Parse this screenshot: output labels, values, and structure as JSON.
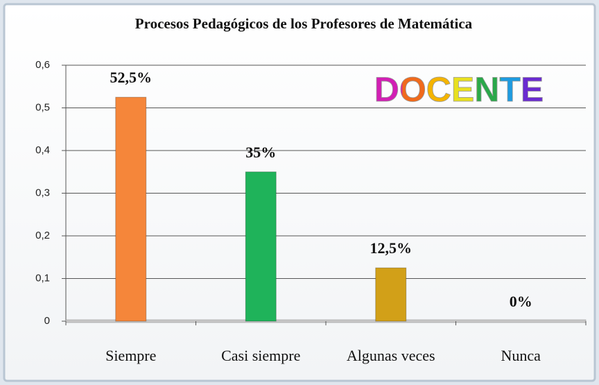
{
  "chart_data": {
    "type": "bar",
    "title": "Procesos Pedagógicos de los Profesores de Matemática",
    "annotation": "DOCENTE",
    "categories": [
      "Siempre",
      "Casi siempre",
      "Algunas veces",
      "Nunca"
    ],
    "values": [
      0.525,
      0.35,
      0.125,
      0
    ],
    "value_labels": [
      "52,5%",
      "35%",
      "12,5%",
      "0%"
    ],
    "colors": [
      "#f5863a",
      "#1fb35a",
      "#d2a018",
      "#8a8a8a"
    ],
    "ylim": [
      0,
      0.6
    ],
    "yticks": [
      0,
      {
        "value": 0.1,
        "label": "0,1"
      },
      {
        "value": 0.2,
        "label": "0,2"
      },
      {
        "value": 0.3,
        "label": "0,3"
      },
      {
        "value": 0.4,
        "label": "0,4"
      },
      {
        "value": 0.5,
        "label": "0,5"
      },
      {
        "value": 0.6,
        "label": "0,6"
      }
    ],
    "grid": true
  }
}
